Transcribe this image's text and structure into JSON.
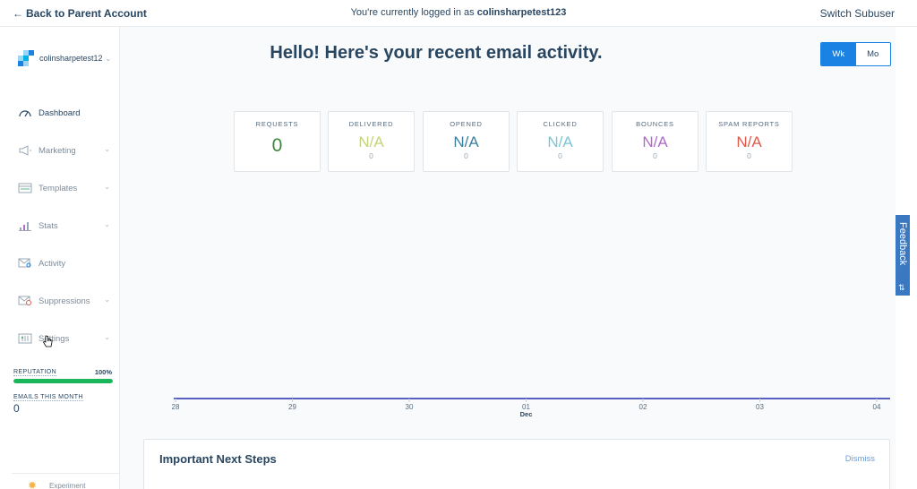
{
  "topbar": {
    "back_label": "Back to Parent Account",
    "logged_in_prefix": "You're currently logged in as ",
    "username": "colinsharpetest123",
    "switch_label": "Switch Subuser"
  },
  "account": {
    "name": "colinsharpetest12"
  },
  "sidebar": {
    "items": [
      {
        "label": "Dashboard",
        "icon": "gauge-icon"
      },
      {
        "label": "Marketing",
        "icon": "megaphone-icon"
      },
      {
        "label": "Templates",
        "icon": "templates-icon"
      },
      {
        "label": "Stats",
        "icon": "bar-chart-icon"
      },
      {
        "label": "Activity",
        "icon": "envelope-search-icon"
      },
      {
        "label": "Suppressions",
        "icon": "envelope-blocked-icon"
      },
      {
        "label": "Settings",
        "icon": "sliders-icon"
      }
    ],
    "reputation_label": "REPUTATION",
    "reputation_value": "100%",
    "reputation_fraction": 1.0,
    "emails_label": "EMAILS THIS MONTH",
    "emails_value": "0",
    "footer_text": "Experiment"
  },
  "main": {
    "greeting": "Hello! Here's your recent email activity.",
    "toggle": {
      "week": "Wk",
      "month": "Mo",
      "selected": "Wk"
    },
    "stats": [
      {
        "title": "REQUESTS",
        "value": "0",
        "sub": "",
        "color": "#3c8a3c"
      },
      {
        "title": "DELIVERED",
        "value": "N/A",
        "sub": "0",
        "color": "#c5d47a"
      },
      {
        "title": "OPENED",
        "value": "N/A",
        "sub": "0",
        "color": "#3e7f9d"
      },
      {
        "title": "CLICKED",
        "value": "N/A",
        "sub": "0",
        "color": "#7cc5d6"
      },
      {
        "title": "BOUNCES",
        "value": "N/A",
        "sub": "0",
        "color": "#b269c9"
      },
      {
        "title": "SPAM REPORTS",
        "value": "N/A",
        "sub": "0",
        "color": "#e05a4e"
      }
    ],
    "next_steps_title": "Important Next Steps",
    "dismiss_label": "Dismiss"
  },
  "chart_data": {
    "type": "line",
    "categories": [
      "28",
      "29",
      "30",
      "01",
      "02",
      "03",
      "04"
    ],
    "month_label": "Dec",
    "month_label_index": 3,
    "series": [
      {
        "values": [
          0,
          0,
          0,
          0,
          0,
          0,
          0
        ],
        "color": "#5a5fc4"
      }
    ],
    "title": "",
    "xlabel": "",
    "ylabel": ""
  },
  "feedback": {
    "label": "Feedback"
  }
}
